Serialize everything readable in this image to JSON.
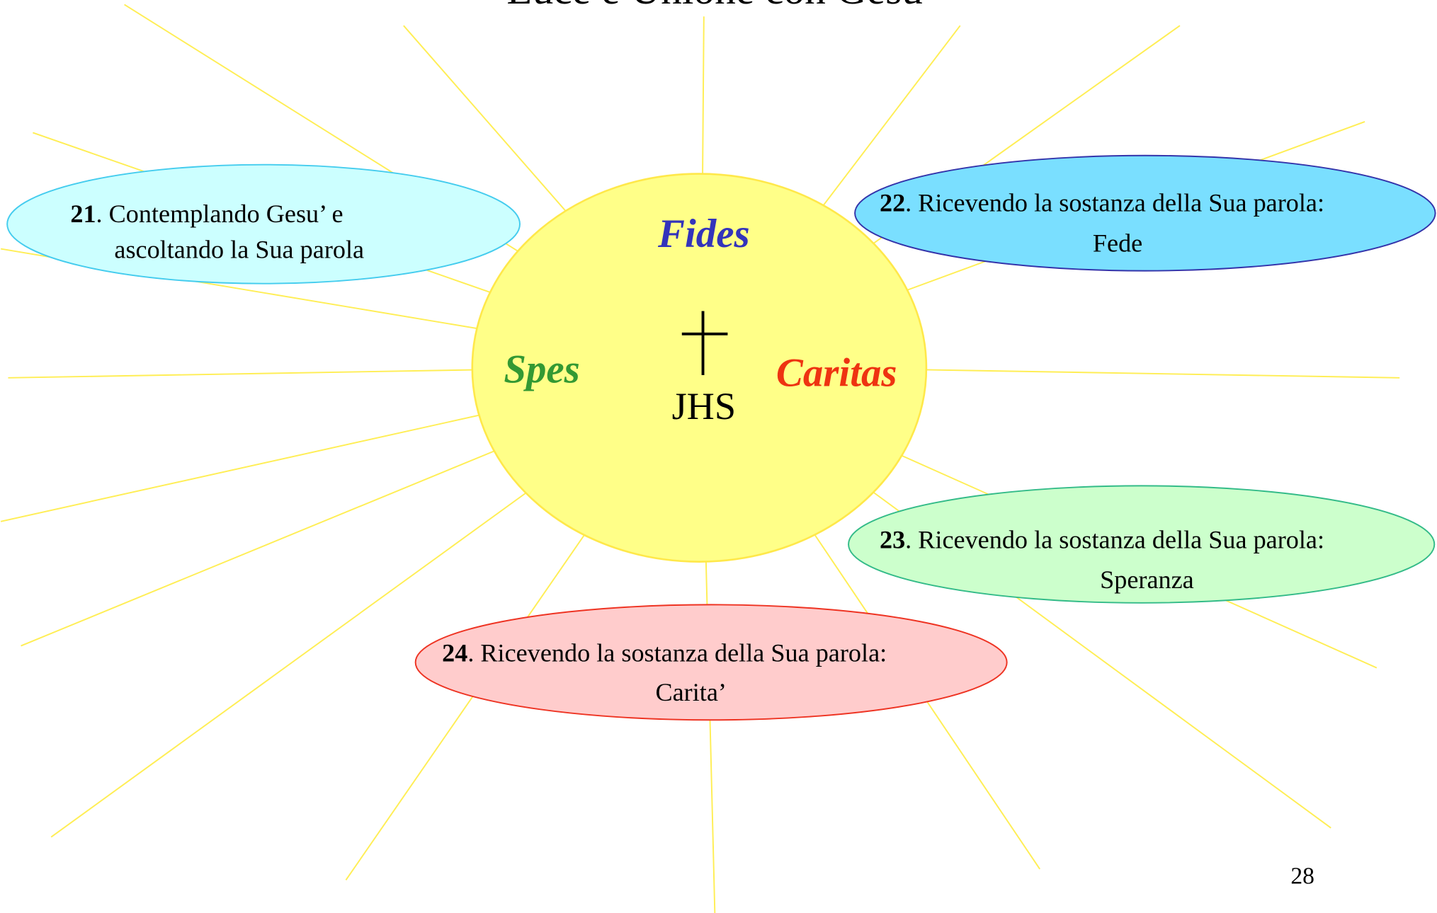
{
  "title": "Luce e Unione con Gesu'",
  "center": {
    "top": "Fides",
    "left": "Spes",
    "right": "Caritas",
    "monogram": "JHS"
  },
  "bubbles": [
    {
      "number": "21",
      "line1": ". Contemplando Gesu’ e",
      "line2": "ascoltando la Sua parola"
    },
    {
      "number": "22",
      "line1": ". Ricevendo la sostanza della Sua parola:",
      "line2": "Fede"
    },
    {
      "number": "23",
      "line1": ". Ricevendo la sostanza della Sua parola:",
      "line2": "Speranza"
    },
    {
      "number": "24",
      "line1": ". Ricevendo la sostanza della Sua parola:",
      "line2": "Carita’"
    }
  ],
  "page_number": "28"
}
